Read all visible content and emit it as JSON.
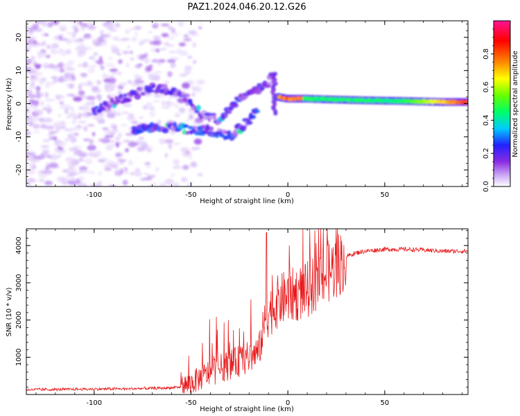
{
  "figure": {
    "title": "PAZ1.2024.046.20.12.G26"
  },
  "chart_data": [
    {
      "type": "heatmap",
      "xlabel": "Height of straight line (km)",
      "ylabel": "Frequency (Hz)",
      "xlim": [
        -135,
        93
      ],
      "ylim": [
        -25,
        25
      ],
      "xticks": [
        -100,
        -50,
        0,
        50
      ],
      "yticks": [
        -20,
        -10,
        0,
        10,
        20
      ],
      "colorbar": {
        "label": "Normalized spectral amplitude",
        "range": [
          0.0,
          1.0
        ],
        "ticks": [
          "0.0",
          "0.2",
          "0.4",
          "0.6",
          "0.8"
        ],
        "colormap": [
          "#ffffff",
          "#c9a6f5",
          "#8a2be2",
          "#2222ff",
          "#00ccff",
          "#00ff66",
          "#66ff00",
          "#ffff00",
          "#ff8800",
          "#ff0000",
          "#ff1493"
        ]
      },
      "features": [
        {
          "description": "noise",
          "x_range": [
            -135,
            -60
          ],
          "freq_range": [
            -25,
            25
          ],
          "amplitude": 0.1
        },
        {
          "description": "upper branch",
          "points": [
            [
              -100,
              -2
            ],
            [
              -70,
              5
            ],
            [
              -55,
              3
            ],
            [
              -45,
              -3
            ],
            [
              -35,
              -5
            ],
            [
              -25,
              2
            ],
            [
              -20,
              4
            ],
            [
              -12,
              5
            ],
            [
              -8,
              8
            ]
          ],
          "amplitude": 0.2
        },
        {
          "description": "lower branch",
          "points": [
            [
              -80,
              -8
            ],
            [
              -60,
              -7
            ],
            [
              -50,
              -8
            ],
            [
              -40,
              -8
            ],
            [
              -30,
              -10
            ],
            [
              -20,
              -5
            ],
            [
              -15,
              -1
            ]
          ],
          "amplitude": 0.25
        },
        {
          "description": "main carrier",
          "points": [
            [
              -5,
              2
            ],
            [
              0,
              1.5
            ],
            [
              10,
              1.5
            ],
            [
              20,
              1.3
            ],
            [
              40,
              1
            ],
            [
              60,
              0.8
            ],
            [
              80,
              0.5
            ],
            [
              93,
              0.5
            ]
          ],
          "amplitude": 0.6
        }
      ]
    },
    {
      "type": "line",
      "xlabel": "Height of straight line (km)",
      "ylabel": "SNR (10 * v/v)",
      "xlim": [
        -135,
        93
      ],
      "ylim": [
        0,
        4450
      ],
      "xticks": [
        -100,
        -50,
        0,
        50
      ],
      "yticks": [
        1000,
        2000,
        3000,
        4000
      ],
      "color": "#e8191b",
      "series": [
        {
          "x": [
            -135,
            -120,
            -100,
            -80,
            -65,
            -55,
            -50,
            -45,
            -40,
            -35,
            -30,
            -25,
            -20,
            -15,
            -12,
            -10,
            -8,
            -5,
            0,
            5,
            10,
            15,
            20,
            25,
            30,
            35,
            40,
            50,
            60,
            70,
            80,
            93
          ],
          "y": [
            130,
            135,
            145,
            155,
            170,
            200,
            300,
            450,
            600,
            700,
            800,
            900,
            1000,
            1150,
            1900,
            2200,
            2300,
            2500,
            2650,
            2700,
            2800,
            3050,
            3250,
            3450,
            3700,
            3800,
            3850,
            3900,
            3900,
            3880,
            3850,
            3850
          ]
        }
      ]
    }
  ]
}
